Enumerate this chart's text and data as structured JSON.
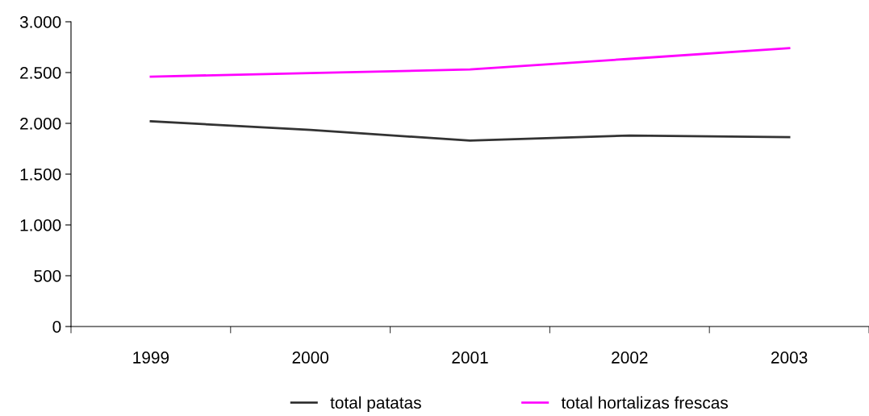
{
  "chart_data": {
    "type": "line",
    "categories": [
      "1999",
      "2000",
      "2001",
      "2002",
      "2003"
    ],
    "series": [
      {
        "name": "total patatas",
        "color": "#333333",
        "values": [
          2020,
          1935,
          1830,
          1880,
          1865
        ]
      },
      {
        "name": "total hortalizas frescas",
        "color": "#ff00ff",
        "values": [
          2460,
          2495,
          2530,
          2635,
          2740
        ]
      }
    ],
    "ylim": [
      0,
      3000
    ],
    "yticks": [
      0,
      500,
      {
        "value": 1000,
        "label": "1.000"
      },
      {
        "value": 1500,
        "label": "1.500"
      },
      {
        "value": 2000,
        "label": "2.000"
      },
      {
        "value": 2500,
        "label": "2.500"
      },
      {
        "value": 3000,
        "label": "3.000"
      }
    ],
    "grid": false,
    "legend": "bottom",
    "marker": "none",
    "line_style": "solid"
  }
}
